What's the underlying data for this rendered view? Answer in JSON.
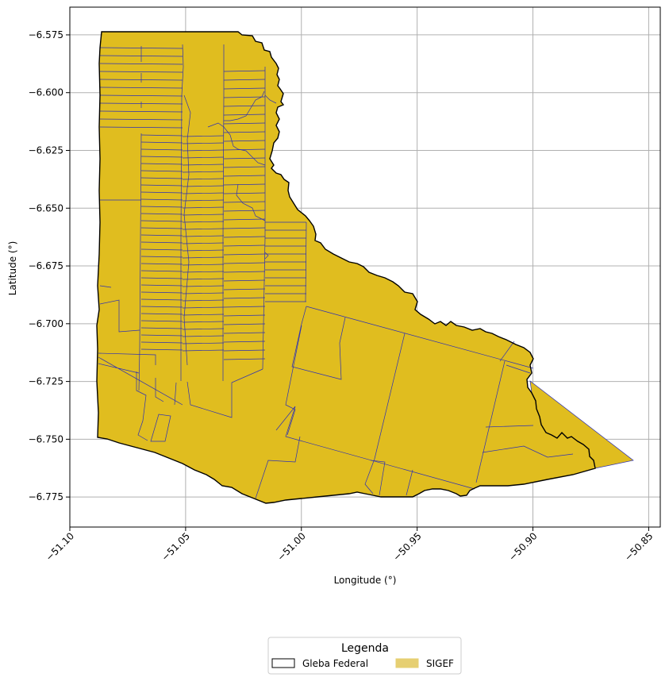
{
  "map": {
    "x_axis_label": "Longitude (°)",
    "y_axis_label": "Latitude (°)",
    "x_range": [
      -51.1,
      -50.845
    ],
    "y_range": [
      -6.788,
      -6.563
    ],
    "x_ticks": [
      {
        "value": -51.1,
        "label": "−51.10"
      },
      {
        "value": -51.05,
        "label": "−51.05"
      },
      {
        "value": -51.0,
        "label": "−51.00"
      },
      {
        "value": -50.95,
        "label": "−50.95"
      },
      {
        "value": -50.9,
        "label": "−50.90"
      },
      {
        "value": -50.85,
        "label": "−50.85"
      }
    ],
    "y_ticks": [
      {
        "value": -6.575,
        "label": "−6.575"
      },
      {
        "value": -6.6,
        "label": "−6.600"
      },
      {
        "value": -6.625,
        "label": "−6.625"
      },
      {
        "value": -6.65,
        "label": "−6.650"
      },
      {
        "value": -6.675,
        "label": "−6.675"
      },
      {
        "value": -6.7,
        "label": "−6.700"
      },
      {
        "value": -6.725,
        "label": "−6.725"
      },
      {
        "value": -6.75,
        "label": "−6.750"
      },
      {
        "value": -6.775,
        "label": "−6.775"
      }
    ],
    "grid": true,
    "colors": {
      "fill": "#e0bd1f",
      "outline": "#000000",
      "parcel": "#2b2fb5",
      "grid": "#b0b0b0"
    }
  },
  "legend": {
    "title": "Legenda",
    "placement": "bottom-center",
    "items": [
      {
        "label": "Gleba Federal",
        "fill": "#ffffff",
        "stroke": "#000000"
      },
      {
        "label": "SIGEF",
        "fill": "#e6cf72",
        "stroke": "#e6cf72"
      }
    ]
  }
}
